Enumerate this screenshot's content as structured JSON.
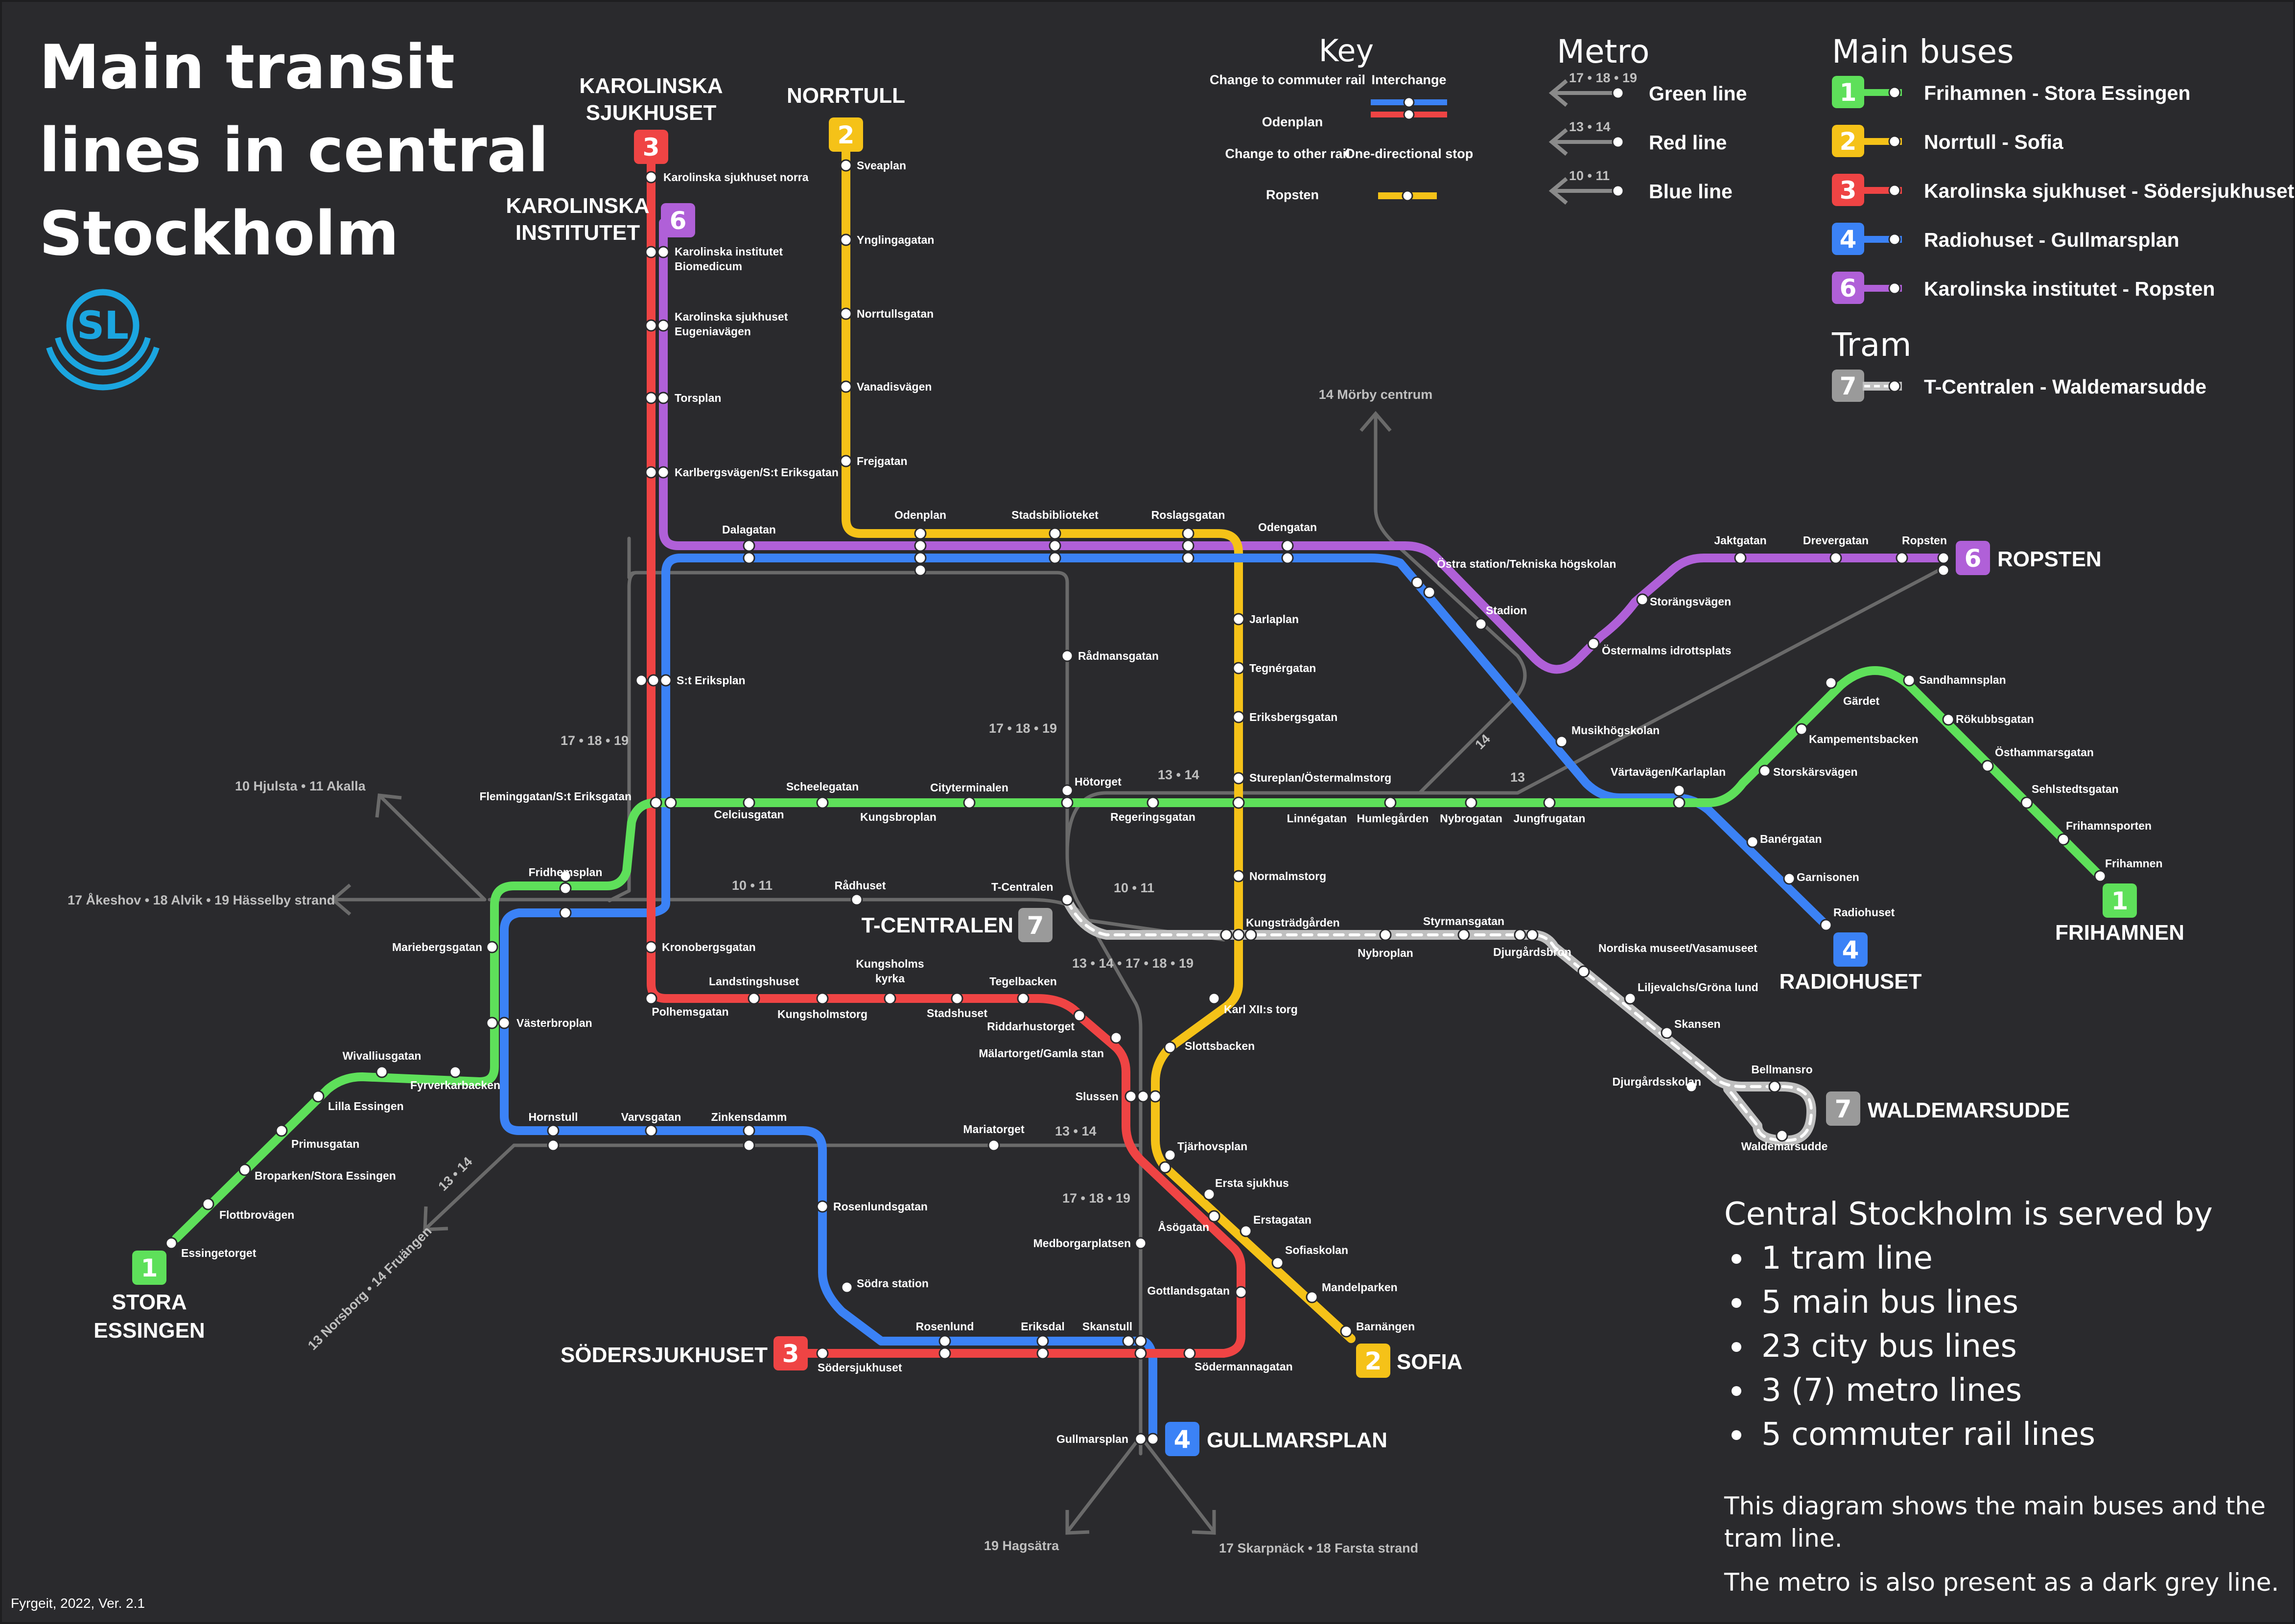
{
  "title": [
    "Main transit",
    "lines in central",
    "Stockholm"
  ],
  "logo": "SL",
  "credit": "Fyrgeit, 2022, Ver. 2.1",
  "colors": {
    "background": "#2a2a2d",
    "line1": "#5ee05a",
    "line2": "#f5c218",
    "line3": "#ef4444",
    "line4": "#3b82f6",
    "line6": "#b060d8",
    "line7": "#9a9a9a",
    "metro": "#6a6a6a",
    "logo": "#1ba6e0"
  },
  "key": {
    "title": "Key",
    "change_commuter": "Change to commuter rail",
    "change_commuter_example": "Odenplan",
    "interchange": "Interchange",
    "change_other": "Change to other rail",
    "change_other_example": "Ropsten",
    "one_directional": "One-directional stop"
  },
  "metro_legend": {
    "title": "Metro",
    "items": [
      {
        "numbers": "17 • 18 • 19",
        "name": "Green line"
      },
      {
        "numbers": "13 • 14",
        "name": "Red line"
      },
      {
        "numbers": "10 • 11",
        "name": "Blue line"
      }
    ]
  },
  "bus_legend": {
    "title": "Main buses",
    "items": [
      {
        "number": "1",
        "name": "Frihamnen - Stora Essingen",
        "color": "#5ee05a"
      },
      {
        "number": "2",
        "name": "Norrtull - Sofia",
        "color": "#f5c218"
      },
      {
        "number": "3",
        "name": "Karolinska sjukhuset - Södersjukhuset",
        "color": "#ef4444"
      },
      {
        "number": "4",
        "name": "Radiohuset - Gullmarsplan",
        "color": "#3b82f6"
      },
      {
        "number": "6",
        "name": "Karolinska institutet - Ropsten",
        "color": "#b060d8"
      }
    ]
  },
  "tram_legend": {
    "title": "Tram",
    "items": [
      {
        "number": "7",
        "name": "T-Centralen - Waldemarsudde",
        "color": "#9a9a9a"
      }
    ]
  },
  "termini": {
    "karolinska_sjukhuset": [
      "KAROLINSKA",
      "SJUKHUSET"
    ],
    "norrtull": "NORRTULL",
    "karolinska_institutet": [
      "KAROLINSKA",
      "INSTITUTET"
    ],
    "ropsten": "ROPSTEN",
    "frihamnen": "FRIHAMNEN",
    "radiohuset": "RADIOHUSET",
    "t_centralen": "T-CENTRALEN",
    "waldemarsudde": "WALDEMARSUDDE",
    "stora_essingen": [
      "STORA",
      "ESSINGEN"
    ],
    "sodersjukhuset": "SÖDERSJUKHUSET",
    "sofia": "SOFIA",
    "gullmarsplan": "GULLMARSPLAN"
  },
  "destinations": {
    "morby": "14 Mörby centrum",
    "hjulsta": "10 Hjulsta • 11 Akalla",
    "akeshov": "17 Åkeshov • 18 Alvik • 19 Hässelby strand",
    "norsborg": "13 Norsborg • 14 Fruängen",
    "hagsatra": "19 Hagsätra",
    "skarpnack": "17 Skarpnäck • 18 Farsta strand"
  },
  "metro_labels": {
    "m1": "17 • 18 • 19",
    "m2": "17 • 18 • 19",
    "m3": "13 • 14",
    "m4": "13",
    "m5": "14",
    "m6": "10 • 11",
    "m7": "10 • 11",
    "m8": "13 • 14 • 17 • 18 • 19",
    "m9": "13 • 14",
    "m10": "17 • 18 • 19",
    "m11": "13 • 14"
  },
  "stations": {
    "karolinska_norra": "Karolinska sjukhuset norra",
    "sveaplan": "Sveaplan",
    "ki_biomedicum": [
      "Karolinska institutet",
      "Biomedicum"
    ],
    "ks_eugenia": [
      "Karolinska sjukhuset",
      "Eugeniavägen"
    ],
    "ynglingagatan": "Ynglingagatan",
    "norrtullsgatan": "Norrtullsgatan",
    "torsplan": "Torsplan",
    "vanadisvagen": "Vanadisvägen",
    "karlbergsvagen": "Karlbergsvägen/S:t Eriksgatan",
    "frejgatan": "Frejgatan",
    "odenplan": "Odenplan",
    "stadsbiblioteket": "Stadsbiblioteket",
    "roslagsgatan": "Roslagsgatan",
    "odengatan": "Odengatan",
    "dalagatan": "Dalagatan",
    "ostra_station": "Östra station/Tekniska högskolan",
    "stadion": "Stadion",
    "jaktgatan": "Jaktgatan",
    "drevergatan": "Drevergatan",
    "ropsten": "Ropsten",
    "storangsvagen": "Storängsvägen",
    "ostermalms_ip": "Östermalms idrottsplats",
    "jarlaplan": "Jarlaplan",
    "radmansgatan": "Rådmansgatan",
    "tegnergatan": "Tegnérgatan",
    "st_eriksplan": "S:t Eriksplan",
    "eriksbergsgatan": "Eriksbergsgatan",
    "musikhogskolan": "Musikhögskolan",
    "sandhamnsplan": "Sandhamnsplan",
    "gardet": "Gärdet",
    "rokubbsgatan": "Rökubbsgatan",
    "kampementsbacken": "Kampementsbacken",
    "osthammarsgatan": "Östhammarsgatan",
    "hotorget": "Hötorget",
    "sturplan": "Stureplan/Östermalmstorg",
    "vartavagen": "Värtavägen/Karlaplan",
    "storskarsvagen": "Storskärsvägen",
    "sehlstedtsgatan": "Sehlstedtsgatan",
    "scheelegatan": "Scheelegatan",
    "cityterminalen": "Cityterminalen",
    "fleminggatan": "Fleminggatan/S:t Eriksgatan",
    "celciusgatan": "Celciusgatan",
    "kungsbroplan": "Kungsbroplan",
    "regeringsgatan": "Regeringsgatan",
    "linnegatan": "Linnégatan",
    "humlegarden": "Humlegården",
    "nybrogatan": "Nybrogatan",
    "jungfrugatan": "Jungfrugatan",
    "frihamnsporten": "Frihamnsporten",
    "banergatan": "Banérgatan",
    "garnisonen": "Garnisonen",
    "frihamnen": "Frihamnen",
    "fridhemsplan": "Fridhemsplan",
    "radhuset": "Rådhuset",
    "t_centralen": "T-Centralen",
    "normalmstorg": "Normalmstorg",
    "radiohuset": "Radiohuset",
    "mariebergsgatan": "Mariebergsgatan",
    "kronobergsgatan": "Kronobergsgatan",
    "kungstradgarden": "Kungsträdgården",
    "styrmansgatan": "Styrmansgatan",
    "nordiska": "Nordiska museet/Vasamuseet",
    "nybroplan": "Nybroplan",
    "djurgardsbron": "Djurgårdsbron",
    "landstingshuset": "Landstingshuset",
    "kungsholms_kyrka": [
      "Kungsholms",
      "kyrka"
    ],
    "tegelbacken": "Tegelbacken",
    "liljevalchs": "Liljevalchs/Gröna lund",
    "polhemsgatan": "Polhemsgatan",
    "kungsholmstorg": "Kungsholmstorg",
    "stadshuset": "Stadshuset",
    "karl_xii": "Karl XII:s torg",
    "riddarhustorget": "Riddarhustorget",
    "skansen": "Skansen",
    "vasterbroplan": "Västerbroplan",
    "malartorget": "Mälartorget/Gamla stan",
    "slottsbacken": "Slottsbacken",
    "wivalliusgatan": "Wivalliusgatan",
    "fyrverkarbacken": "Fyrverkarbacken",
    "djurgardsskolan": "Djurgårdsskolan",
    "bellmansro": "Bellmansro",
    "lilla_essingen": "Lilla Essingen",
    "slussen": "Slussen",
    "hornstull": "Hornstull",
    "varvsgatan": "Varvsgatan",
    "zinkensdamm": "Zinkensdamm",
    "mariatorget": "Mariatorget",
    "primusgatan": "Primusgatan",
    "tjarhovsplan": "Tjärhovsplan",
    "waldemarsudde": "Waldemarsudde",
    "broparken": "Broparken/Stora Essingen",
    "ersta_sjukhus": "Ersta sjukhus",
    "flottbrovagen": "Flottbrovägen",
    "rosenlundsgatan": "Rosenlundsgatan",
    "asogatan": "Åsögatan",
    "erstagatan": "Erstagatan",
    "medborgarplatsen": "Medborgarplatsen",
    "sofiaskolan": "Sofiaskolan",
    "essingetorget": "Essingetorget",
    "sodra_station": "Södra station",
    "mandelparken": "Mandelparken",
    "gottlandsgatan": "Gottlandsgatan",
    "barnangen": "Barnängen",
    "rosenlund": "Rosenlund",
    "eriksdal": "Eriksdal",
    "skanstull": "Skanstull",
    "sodersjukhuset": "Södersjukhuset",
    "sodermannagatan": "Södermannagatan",
    "gullmarsplan": "Gullmarsplan"
  },
  "info": {
    "heading": "Central Stockholm is served by",
    "bullets": [
      "1 tram line",
      "5 main bus lines",
      "23 city bus lines",
      "3 (7) metro lines",
      "5 commuter rail lines"
    ],
    "note1": [
      "This diagram shows the main buses and the",
      "tram line."
    ],
    "note2": "The metro is also present as a dark grey line."
  }
}
